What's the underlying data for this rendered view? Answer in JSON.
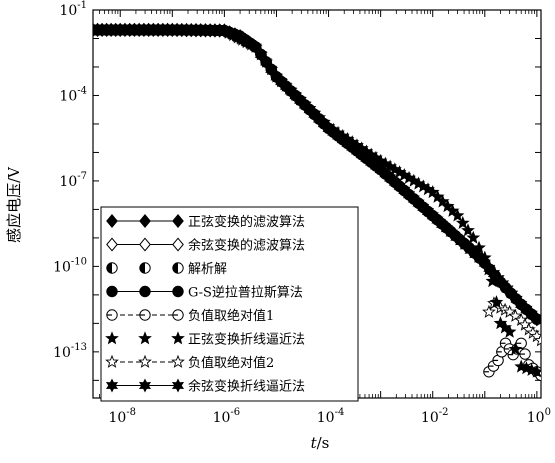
{
  "chart_data": {
    "type": "scatter",
    "title": "",
    "xlabel_italic": "t",
    "xlabel_unit": "/s",
    "ylabel": "感应电压/V",
    "x_scale": "log",
    "y_scale": "log",
    "xlim": [
      3e-09,
      1.2
    ],
    "ylim": [
      2.4e-15,
      0.1
    ],
    "x_ticks": [
      {
        "value": 1e-08,
        "base": "10",
        "exp": "-8"
      },
      {
        "value": 1e-06,
        "base": "10",
        "exp": "-6"
      },
      {
        "value": 0.0001,
        "base": "10",
        "exp": "-4"
      },
      {
        "value": 0.01,
        "base": "10",
        "exp": "-2"
      },
      {
        "value": 1,
        "base": "10",
        "exp": "0"
      }
    ],
    "y_ticks": [
      {
        "value": 0.1,
        "base": "10",
        "exp": "-1"
      },
      {
        "value": 0.0001,
        "base": "10",
        "exp": "-4"
      },
      {
        "value": 1e-07,
        "base": "10",
        "exp": "-7"
      },
      {
        "value": 1e-10,
        "base": "10",
        "exp": "-10"
      },
      {
        "value": 1e-13,
        "base": "10",
        "exp": "-13"
      }
    ],
    "grid": false,
    "legend_position": "lower-left",
    "series": [
      {
        "name": "正弦变换的滤波算法",
        "marker": "diamond-filled",
        "line": "solid",
        "x": [
          3e-09,
          1e-08,
          1e-07,
          1e-06,
          2e-06,
          4e-06,
          1e-05,
          0.0001,
          0.001,
          0.01,
          0.05,
          0.1,
          0.2,
          0.5,
          1.0
        ],
        "y": [
          0.02,
          0.02,
          0.02,
          0.019,
          0.012,
          0.005,
          0.00045,
          7e-06,
          2.5e-07,
          6e-09,
          4.5e-10,
          1.3e-10,
          2.8e-11,
          4.6e-12,
          1.4e-12
        ]
      },
      {
        "name": "余弦变换的滤波算法",
        "marker": "diamond-open",
        "line": "solid",
        "x": [
          3e-09,
          1e-08,
          1e-07,
          1e-06,
          2e-06,
          4e-06,
          1e-05,
          0.0001,
          0.001,
          0.01,
          0.05,
          0.1,
          0.2,
          0.5,
          1.0
        ],
        "y": [
          0.02,
          0.02,
          0.02,
          0.019,
          0.012,
          0.005,
          0.00045,
          7e-06,
          2.5e-07,
          6e-09,
          4.5e-10,
          1.3e-10,
          2.8e-11,
          4.6e-12,
          1.4e-12
        ]
      },
      {
        "name": "解析解",
        "marker": "circle-half",
        "line": "none",
        "x": [
          3e-09,
          1e-08,
          1e-07,
          1e-06,
          2e-06,
          4e-06,
          1e-05,
          0.0001,
          0.001,
          0.01,
          0.05,
          0.1,
          0.2,
          0.5,
          1.0
        ],
        "y": [
          0.02,
          0.02,
          0.02,
          0.019,
          0.012,
          0.005,
          0.00045,
          7e-06,
          2.5e-07,
          6e-09,
          4.5e-10,
          1.3e-10,
          2.8e-11,
          4.6e-12,
          1.4e-12
        ]
      },
      {
        "name": "G-S逆拉普拉斯算法",
        "marker": "circle-filled",
        "line": "solid",
        "x": [
          3e-09,
          1e-08,
          1e-07,
          1e-06,
          2e-06,
          4e-06,
          1e-05,
          0.0001,
          0.001,
          0.01,
          0.05,
          0.1,
          0.2,
          0.5,
          1.0
        ],
        "y": [
          0.02,
          0.02,
          0.02,
          0.019,
          0.012,
          0.005,
          0.00045,
          7e-06,
          2.5e-07,
          6e-09,
          4.5e-10,
          1.3e-10,
          2.8e-11,
          4.6e-12,
          1.4e-12
        ]
      },
      {
        "name": "负值取绝对值1",
        "marker": "circle-minus",
        "line": "dashed",
        "x": [
          0.12,
          0.18,
          0.25,
          0.35,
          0.5,
          0.7,
          1.0,
          1.2
        ],
        "y": [
          2e-14,
          5e-14,
          2e-13,
          8e-14,
          2e-13,
          3.5e-14,
          2e-14,
          1.5e-14
        ]
      },
      {
        "name": "正弦变换折线逼近法",
        "marker": "star-filled",
        "line": "none",
        "x": [
          1e-08,
          1e-07,
          1e-06,
          4e-06,
          1e-05,
          0.0001,
          0.001,
          0.01,
          0.03,
          0.06,
          0.1,
          0.14,
          0.2,
          0.3,
          0.5,
          1.0
        ],
        "y": [
          0.02,
          0.02,
          0.019,
          0.005,
          0.00045,
          8e-06,
          5e-07,
          4e-08,
          6e-09,
          1e-09,
          2e-10,
          3e-11,
          1e-12,
          5e-13,
          3e-14,
          2e-14
        ]
      },
      {
        "name": "负值取绝对值2",
        "marker": "star-open",
        "line": "dashed",
        "x": [
          0.12,
          0.15,
          0.2,
          0.3,
          0.5,
          0.7,
          1.0,
          1.2
        ],
        "y": [
          2.5e-12,
          5e-12,
          3.5e-12,
          2.5e-12,
          1.3e-12,
          6e-13,
          3.5e-13,
          2.5e-13
        ]
      },
      {
        "name": "余弦变换折线逼近法",
        "marker": "star6-filled",
        "line": "solid",
        "x": [
          3e-09,
          1e-08,
          1e-07,
          1e-06,
          4e-06,
          1e-05,
          0.0001,
          0.001,
          0.01,
          0.1,
          0.5,
          1.0
        ],
        "y": [
          0.02,
          0.02,
          0.02,
          0.019,
          0.005,
          0.00045,
          7e-06,
          2.5e-07,
          6e-09,
          1.3e-10,
          4.6e-12,
          1.4e-12
        ]
      }
    ]
  }
}
